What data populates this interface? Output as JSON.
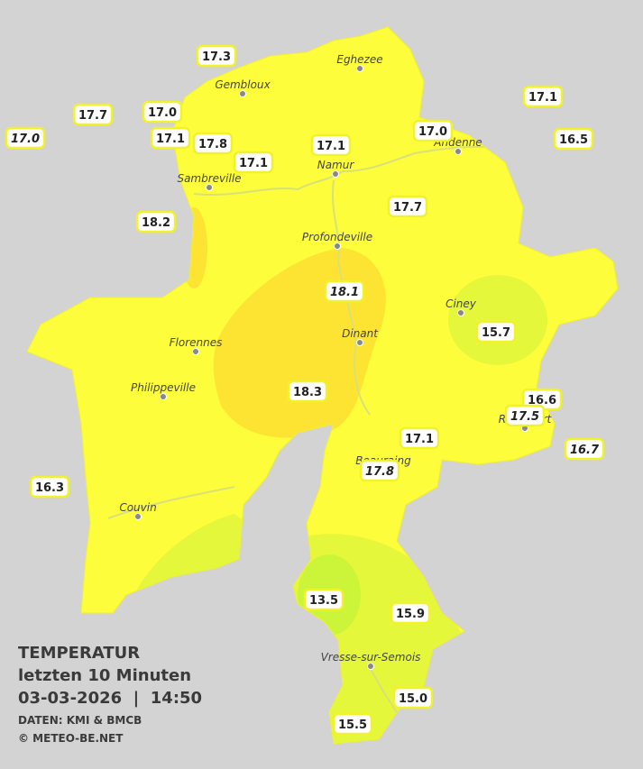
{
  "legend": {
    "title": "TEMPERATUR",
    "period": "letzten 10 Minuten",
    "datetime": "03-03-2026  |  14:50",
    "source": "DATEN: KMI & BMCB",
    "copyright": "© METEO-BE.NET"
  },
  "cities": [
    {
      "name": "Eghezee"
    },
    {
      "name": "Gembloux"
    },
    {
      "name": "Andenne"
    },
    {
      "name": "Namur"
    },
    {
      "name": "Sambreville"
    },
    {
      "name": "Profondeville"
    },
    {
      "name": "Ciney"
    },
    {
      "name": "Florennes"
    },
    {
      "name": "Dinant"
    },
    {
      "name": "Philippeville"
    },
    {
      "name": "Rochefort"
    },
    {
      "name": "Beauraing"
    },
    {
      "name": "Couvin"
    },
    {
      "name": "Vresse-sur-Semois"
    }
  ],
  "stations": [
    {
      "label": "17.3",
      "italic": false
    },
    {
      "label": "17.7",
      "italic": false
    },
    {
      "label": "17.0",
      "italic": false
    },
    {
      "label": "17.0",
      "italic": true
    },
    {
      "label": "17.1",
      "italic": false
    },
    {
      "label": "17.8",
      "italic": false
    },
    {
      "label": "17.1",
      "italic": false
    },
    {
      "label": "17.1",
      "italic": false
    },
    {
      "label": "17.0",
      "italic": false
    },
    {
      "label": "17.1",
      "italic": false
    },
    {
      "label": "16.5",
      "italic": false
    },
    {
      "label": "18.2",
      "italic": false
    },
    {
      "label": "17.7",
      "italic": false
    },
    {
      "label": "18.1",
      "italic": true
    },
    {
      "label": "15.7",
      "italic": false
    },
    {
      "label": "18.3",
      "italic": false
    },
    {
      "label": "16.6",
      "italic": false
    },
    {
      "label": "17.5",
      "italic": true
    },
    {
      "label": "16.7",
      "italic": true
    },
    {
      "label": "17.1",
      "italic": false
    },
    {
      "label": "17.8",
      "italic": true
    },
    {
      "label": "16.3",
      "italic": false
    },
    {
      "label": "13.5",
      "italic": false
    },
    {
      "label": "15.9",
      "italic": false
    },
    {
      "label": "15.0",
      "italic": false
    },
    {
      "label": "15.5",
      "italic": false
    }
  ]
}
